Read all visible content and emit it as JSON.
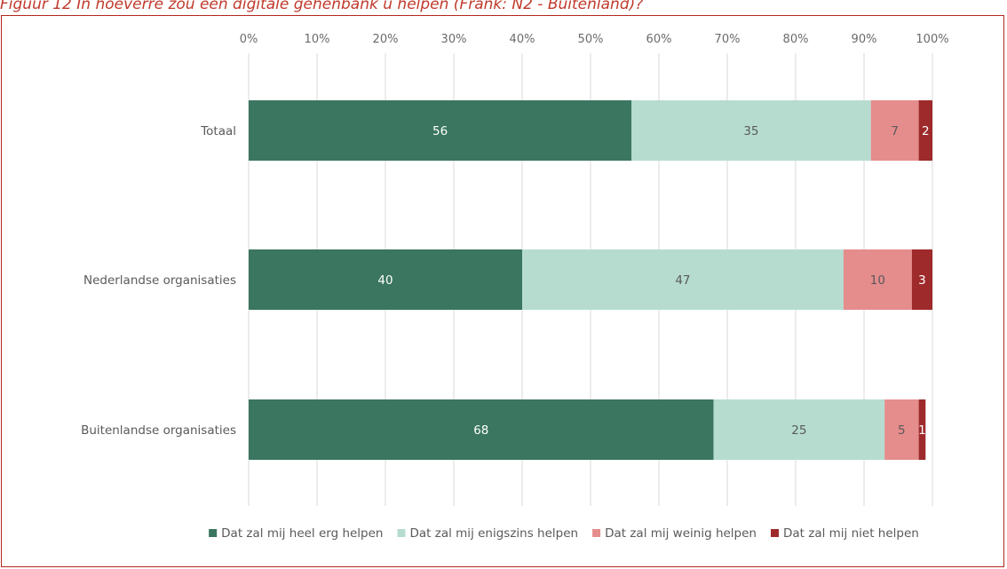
{
  "caption": "Figuur 12 In hoeverre zou een digitale gehenbank u helpen (Frank: N2 - Buitenland)?",
  "chart_data": {
    "type": "bar",
    "orientation": "horizontal",
    "stacked": true,
    "xlim": [
      0,
      100
    ],
    "x_ticks": [
      "0%",
      "10%",
      "20%",
      "30%",
      "40%",
      "50%",
      "60%",
      "70%",
      "80%",
      "90%",
      "100%"
    ],
    "grid": true,
    "legend_position": "bottom",
    "categories": [
      "Totaal",
      "Nederlandse organisaties",
      "Buitenlandse organisaties"
    ],
    "series": [
      {
        "name": "Dat zal mij heel erg helpen",
        "color": "#3a7660",
        "label_color": "#ffffff",
        "values": [
          56,
          40,
          68
        ]
      },
      {
        "name": "Dat zal mij enigszins helpen",
        "color": "#b6dcd0",
        "label_color": "#5a5a5a",
        "values": [
          35,
          47,
          25
        ]
      },
      {
        "name": "Dat zal mij weinig helpen",
        "color": "#e58c8c",
        "label_color": "#5a5a5a",
        "values": [
          7,
          10,
          5
        ]
      },
      {
        "name": "Dat zal mij niet helpen",
        "color": "#9e2a2b",
        "label_color": "#ffffff",
        "values": [
          2,
          3,
          1
        ]
      }
    ]
  }
}
